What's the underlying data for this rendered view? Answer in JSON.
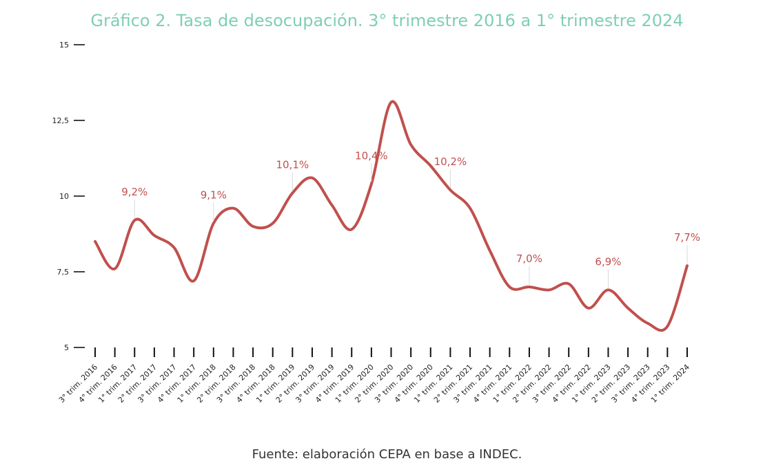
{
  "chart_data": {
    "type": "line",
    "title": "Gráfico 2. Tasa de desocupación. 3° trimestre 2016 a 1° trimestre 2024",
    "source": "Fuente: elaboración CEPA en base a INDEC.",
    "categories": [
      "3° trim. 2016",
      "4° trim. 2016",
      "1° trim. 2017",
      "2° trim. 2017",
      "3° trim. 2017",
      "4° trim. 2017",
      "1° trim. 2018",
      "2° trim. 2018",
      "3° trim. 2018",
      "4° trim. 2018",
      "1° trim. 2019",
      "2° trim. 2019",
      "3° trim. 2019",
      "4° trim. 2019",
      "1° trim. 2020",
      "2° trim. 2020",
      "3° trim. 2020",
      "4° trim. 2020",
      "1° trim. 2021",
      "2° trim. 2021",
      "3° trim. 2021",
      "4° trim. 2021",
      "1° trim. 2022",
      "2° trim. 2022",
      "3° trim. 2022",
      "4° trim. 2022",
      "1° trim. 2023",
      "2° trim. 2023",
      "3° trim. 2023",
      "4° trim. 2023",
      "1° trim. 2024"
    ],
    "values": [
      8.5,
      7.6,
      9.2,
      8.7,
      8.3,
      7.2,
      9.1,
      9.6,
      9.0,
      9.1,
      10.1,
      10.6,
      9.7,
      8.9,
      10.4,
      13.1,
      11.7,
      11.0,
      10.2,
      9.6,
      8.2,
      7.0,
      7.0,
      6.9,
      7.1,
      6.3,
      6.9,
      6.3,
      5.8,
      5.7,
      7.7
    ],
    "labels": [
      {
        "index": 2,
        "text": "9,2%"
      },
      {
        "index": 6,
        "text": "9,1%"
      },
      {
        "index": 10,
        "text": "10,1%"
      },
      {
        "index": 14,
        "text": "10,4%"
      },
      {
        "index": 18,
        "text": "10,2%"
      },
      {
        "index": 22,
        "text": "7,0%"
      },
      {
        "index": 26,
        "text": "6,9%"
      },
      {
        "index": 30,
        "text": "7,7%"
      }
    ],
    "ylim": [
      5,
      15
    ],
    "yticks": [
      {
        "value": 15,
        "label": "15"
      },
      {
        "value": 12.5,
        "label": "12,5"
      },
      {
        "value": 10,
        "label": "10"
      },
      {
        "value": 7.5,
        "label": "7,5"
      },
      {
        "value": 5,
        "label": "5"
      }
    ],
    "xlabel": "",
    "ylabel": "",
    "grid": false,
    "colors": {
      "line": "#c0504d",
      "label": "#c0504d",
      "title": "#7ecfb4",
      "axis": "#111111"
    }
  }
}
